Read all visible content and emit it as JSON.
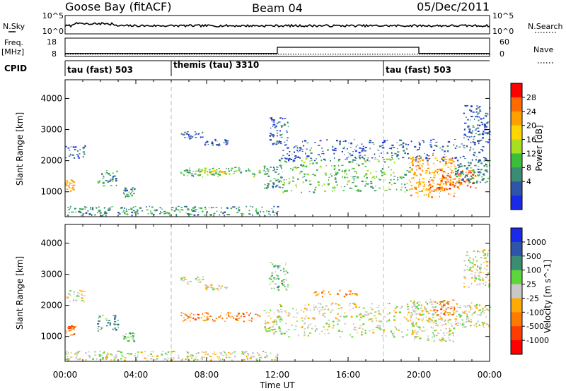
{
  "header": {
    "station": "Goose Bay (fitACF)",
    "beam": "Beam 04",
    "date": "05/Dec/2011"
  },
  "noise_panel": {
    "left_label": "N.Sky",
    "right_label": "N.Search",
    "left_ticks": [
      "10^5",
      "10^0"
    ],
    "right_ticks": [
      "10^5",
      "10^0"
    ]
  },
  "freq_panel": {
    "left_label_top": "Freq.",
    "left_label_bottom": "[MHz]",
    "left_ticks": [
      "18",
      "8"
    ],
    "right_ticks": [
      "60",
      "0"
    ],
    "right_label": "Nave",
    "freq_mhz": 10,
    "nave_segments": [
      {
        "start_hour": 0,
        "end_hour": 12,
        "nave": 10
      },
      {
        "start_hour": 12,
        "end_hour": 20,
        "nave": 30
      },
      {
        "start_hour": 20,
        "end_hour": 24,
        "nave": 10
      }
    ]
  },
  "cpid": {
    "label": "CPID",
    "segments": [
      {
        "start_hour": 0,
        "label": "tau (fast) 503"
      },
      {
        "start_hour": 6,
        "label": "themis (tau) 3310"
      },
      {
        "start_hour": 18,
        "label": "tau (fast) 503"
      }
    ]
  },
  "chart_data": [
    {
      "type": "heatmap",
      "quantity": "Power",
      "ylabel": "Slant Range [km]",
      "xlabel": "Time UT",
      "xlim_hours": [
        0,
        24
      ],
      "ylim": [
        200,
        4600
      ],
      "y_ticks": [
        1000,
        2000,
        3000,
        4000
      ],
      "x_tick_labels": [
        "00:00",
        "04:00",
        "08:00",
        "12:00",
        "16:00",
        "20:00",
        "00:00"
      ],
      "colorbar_label": "Power [dB]",
      "colorbar_ticks": [
        "28",
        "24",
        "20",
        "16",
        "12",
        "8",
        "4"
      ],
      "colorbar_colors": [
        "#ff0000",
        "#ff6a00",
        "#ff9f00",
        "#ffd600",
        "#a8e020",
        "#3bbf3b",
        "#3a8c72",
        "#2e55a8",
        "#1a2ae8"
      ],
      "regions": [
        {
          "t0": 0.0,
          "t1": 1.1,
          "r0": 2100,
          "r1": 2500,
          "level": 7
        },
        {
          "t0": 0.0,
          "t1": 0.5,
          "r0": 1050,
          "r1": 1400,
          "level": 2
        },
        {
          "t0": 1.8,
          "t1": 3.0,
          "r0": 1200,
          "r1": 1700,
          "level": 6
        },
        {
          "t0": 3.2,
          "t1": 3.9,
          "r0": 850,
          "r1": 1150,
          "level": 6
        },
        {
          "t0": 0.0,
          "t1": 12.0,
          "r0": 250,
          "r1": 550,
          "level": 6
        },
        {
          "t0": 6.5,
          "t1": 7.8,
          "r0": 2700,
          "r1": 2950,
          "level": 7
        },
        {
          "t0": 7.8,
          "t1": 9.2,
          "r0": 2500,
          "r1": 2700,
          "level": 7
        },
        {
          "t0": 6.5,
          "t1": 11.0,
          "r0": 1500,
          "r1": 1800,
          "level": 5
        },
        {
          "t0": 7.5,
          "t1": 9.0,
          "r0": 1600,
          "r1": 1700,
          "level": 3
        },
        {
          "t0": 11.2,
          "t1": 12.2,
          "r0": 1100,
          "r1": 1900,
          "level": 6
        },
        {
          "t0": 11.5,
          "t1": 12.6,
          "r0": 2500,
          "r1": 3400,
          "level": 7
        },
        {
          "t0": 12.0,
          "t1": 19.5,
          "r0": 1000,
          "r1": 2100,
          "level": 5
        },
        {
          "t0": 12.0,
          "t1": 24.0,
          "r0": 2000,
          "r1": 2700,
          "level": 7
        },
        {
          "t0": 19.5,
          "t1": 22.0,
          "r0": 850,
          "r1": 2200,
          "level": 2
        },
        {
          "t0": 20.5,
          "t1": 23.2,
          "r0": 1100,
          "r1": 1700,
          "level": 1
        },
        {
          "t0": 22.0,
          "t1": 24.0,
          "r0": 1300,
          "r1": 2100,
          "level": 6
        },
        {
          "t0": 22.5,
          "t1": 24.0,
          "r0": 2600,
          "r1": 3800,
          "level": 7
        }
      ]
    },
    {
      "type": "heatmap",
      "quantity": "Velocity",
      "ylabel": "Slant Range [km]",
      "xlabel": "Time UT",
      "xlim_hours": [
        0,
        24
      ],
      "ylim": [
        200,
        4600
      ],
      "y_ticks": [
        1000,
        2000,
        3000,
        4000
      ],
      "x_tick_labels": [
        "00:00",
        "04:00",
        "08:00",
        "12:00",
        "16:00",
        "20:00",
        "00:00"
      ],
      "colorbar_label": "Velocity [m s^-1]",
      "colorbar_ticks": [
        "1000",
        "500",
        "100",
        "25",
        "-25",
        "-100",
        "-500",
        "-1000"
      ],
      "colorbar_colors": [
        "#1a2ae8",
        "#2e55a8",
        "#3a8c72",
        "#5cd63a",
        "#c8c8c8",
        "#ffaa00",
        "#ff7a00",
        "#ff3c00",
        "#ff0000"
      ],
      "regions": [
        {
          "t0": 0.0,
          "t1": 1.1,
          "r0": 2100,
          "r1": 2500,
          "level": 4
        },
        {
          "t0": 0.0,
          "t1": 0.5,
          "r0": 1050,
          "r1": 1400,
          "level": 6
        },
        {
          "t0": 1.8,
          "t1": 3.0,
          "r0": 1200,
          "r1": 1700,
          "level": 2
        },
        {
          "t0": 3.2,
          "t1": 3.9,
          "r0": 850,
          "r1": 1150,
          "level": 3
        },
        {
          "t0": 0.0,
          "t1": 12.0,
          "r0": 250,
          "r1": 550,
          "level": 4
        },
        {
          "t0": 6.5,
          "t1": 7.8,
          "r0": 2700,
          "r1": 2950,
          "level": 4
        },
        {
          "t0": 7.8,
          "t1": 9.2,
          "r0": 2500,
          "r1": 2700,
          "level": 4
        },
        {
          "t0": 6.5,
          "t1": 11.0,
          "r0": 1500,
          "r1": 1800,
          "level": 6
        },
        {
          "t0": 11.2,
          "t1": 12.2,
          "r0": 1100,
          "r1": 1900,
          "level": 4
        },
        {
          "t0": 11.5,
          "t1": 12.6,
          "r0": 2500,
          "r1": 3400,
          "level": 3
        },
        {
          "t0": 12.0,
          "t1": 19.5,
          "r0": 1000,
          "r1": 2100,
          "level": 4
        },
        {
          "t0": 14.0,
          "t1": 16.5,
          "r0": 2300,
          "r1": 2500,
          "level": 6
        },
        {
          "t0": 19.5,
          "t1": 22.0,
          "r0": 850,
          "r1": 2200,
          "level": 4
        },
        {
          "t0": 20.8,
          "t1": 22.0,
          "r0": 1700,
          "r1": 2200,
          "level": 6
        },
        {
          "t0": 22.0,
          "t1": 24.0,
          "r0": 1300,
          "r1": 2100,
          "level": 4
        },
        {
          "t0": 22.5,
          "t1": 24.0,
          "r0": 2600,
          "r1": 3800,
          "level": 4
        }
      ]
    }
  ]
}
